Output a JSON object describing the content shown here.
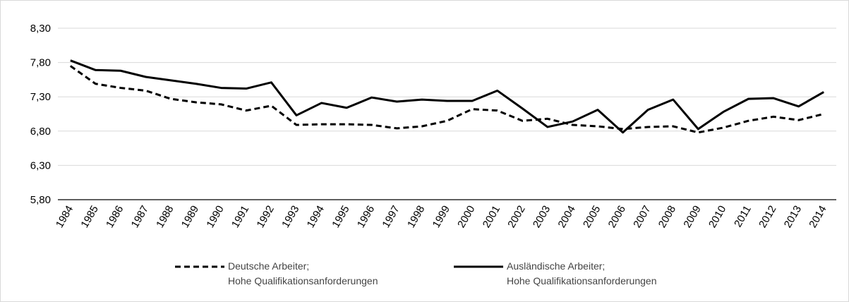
{
  "chart_data": {
    "type": "line",
    "categories": [
      "1984",
      "1985",
      "1986",
      "1987",
      "1988",
      "1989",
      "1990",
      "1991",
      "1992",
      "1993",
      "1994",
      "1995",
      "1996",
      "1997",
      "1998",
      "1999",
      "2000",
      "2001",
      "2002",
      "2003",
      "2004",
      "2005",
      "2006",
      "2007",
      "2008",
      "2009",
      "2010",
      "2011",
      "2012",
      "2013",
      "2014"
    ],
    "series": [
      {
        "name": "Deutsche Arbeiter;\nHohe Qualifikationsanforderungen",
        "color": "#000000",
        "dash": true,
        "values": [
          7.75,
          7.49,
          7.43,
          7.39,
          7.27,
          7.22,
          7.19,
          7.1,
          7.17,
          6.89,
          6.9,
          6.9,
          6.89,
          6.84,
          6.87,
          6.95,
          7.12,
          7.1,
          6.95,
          6.98,
          6.89,
          6.87,
          6.83,
          6.86,
          6.87,
          6.78,
          6.85,
          6.95,
          7.01,
          6.96,
          7.05
        ]
      },
      {
        "name": "Ausländische Arbeiter;\nHohe Qualifikationsanforderungen",
        "color": "#000000",
        "dash": false,
        "values": [
          7.83,
          7.69,
          7.68,
          7.59,
          7.54,
          7.49,
          7.43,
          7.42,
          7.51,
          7.03,
          7.21,
          7.14,
          7.29,
          7.23,
          7.26,
          7.24,
          7.24,
          7.39,
          7.13,
          6.86,
          6.94,
          7.11,
          6.78,
          7.11,
          7.26,
          6.83,
          7.08,
          7.27,
          7.28,
          7.16,
          7.37
        ]
      }
    ],
    "ylim": [
      5.8,
      8.3
    ],
    "yticks": [
      {
        "value": 5.8,
        "label": "5,80"
      },
      {
        "value": 6.3,
        "label": "6,30"
      },
      {
        "value": 6.8,
        "label": "6,80"
      },
      {
        "value": 7.3,
        "label": "7,30"
      },
      {
        "value": 7.8,
        "label": "7,80"
      },
      {
        "value": 8.3,
        "label": "8,30"
      }
    ],
    "grid": true
  }
}
